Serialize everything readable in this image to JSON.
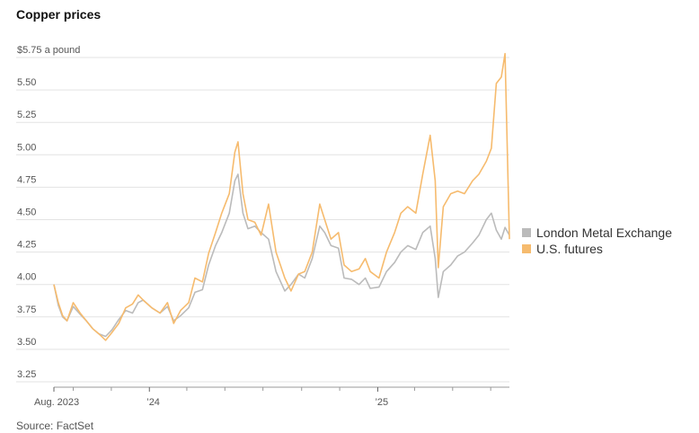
{
  "title": "Copper prices",
  "source": "Source: FactSet",
  "chart_data": {
    "type": "line",
    "unit_label": "a pound",
    "y_ticks": [
      {
        "value": 5.75,
        "label": "$5.75 a pound"
      },
      {
        "value": 5.5,
        "label": "5.50"
      },
      {
        "value": 5.25,
        "label": "5.25"
      },
      {
        "value": 5.0,
        "label": "5.00"
      },
      {
        "value": 4.75,
        "label": "4.75"
      },
      {
        "value": 4.5,
        "label": "4.50"
      },
      {
        "value": 4.25,
        "label": "4.25"
      },
      {
        "value": 4.0,
        "label": "4.00"
      },
      {
        "value": 3.75,
        "label": "3.75"
      },
      {
        "value": 3.5,
        "label": "3.50"
      },
      {
        "value": 3.25,
        "label": "3.25"
      }
    ],
    "ylim": [
      3.25,
      5.75
    ],
    "x_start": "2023-08-01",
    "x_end": "2025-07-31",
    "x_tick_labels": [
      {
        "date": "2023-08-01",
        "label": "Aug. 2023"
      },
      {
        "date": "2024-01-01",
        "label": "’24"
      },
      {
        "date": "2025-01-01",
        "label": "’25"
      }
    ],
    "grid": "horizontal",
    "legend_position": "right",
    "series": [
      {
        "name": "London Metal Exchange",
        "color": "#bbbbbb",
        "points": [
          [
            "2023-08-01",
            4.0
          ],
          [
            "2023-08-08",
            3.84
          ],
          [
            "2023-08-15",
            3.75
          ],
          [
            "2023-08-22",
            3.72
          ],
          [
            "2023-09-01",
            3.83
          ],
          [
            "2023-09-12",
            3.77
          ],
          [
            "2023-09-22",
            3.72
          ],
          [
            "2023-10-02",
            3.66
          ],
          [
            "2023-10-12",
            3.62
          ],
          [
            "2023-10-23",
            3.6
          ],
          [
            "2023-11-02",
            3.65
          ],
          [
            "2023-11-13",
            3.73
          ],
          [
            "2023-11-24",
            3.8
          ],
          [
            "2023-12-05",
            3.78
          ],
          [
            "2023-12-14",
            3.86
          ],
          [
            "2023-12-22",
            3.88
          ],
          [
            "2024-01-05",
            3.82
          ],
          [
            "2024-01-18",
            3.78
          ],
          [
            "2024-01-30",
            3.83
          ],
          [
            "2024-02-09",
            3.72
          ],
          [
            "2024-02-20",
            3.76
          ],
          [
            "2024-03-04",
            3.82
          ],
          [
            "2024-03-14",
            3.94
          ],
          [
            "2024-03-26",
            3.96
          ],
          [
            "2024-04-05",
            4.15
          ],
          [
            "2024-04-16",
            4.3
          ],
          [
            "2024-04-26",
            4.4
          ],
          [
            "2024-05-08",
            4.55
          ],
          [
            "2024-05-17",
            4.8
          ],
          [
            "2024-05-22",
            4.85
          ],
          [
            "2024-05-30",
            4.55
          ],
          [
            "2024-06-07",
            4.43
          ],
          [
            "2024-06-18",
            4.45
          ],
          [
            "2024-06-28",
            4.4
          ],
          [
            "2024-07-10",
            4.35
          ],
          [
            "2024-07-22",
            4.1
          ],
          [
            "2024-08-05",
            3.95
          ],
          [
            "2024-08-15",
            4.0
          ],
          [
            "2024-08-27",
            4.08
          ],
          [
            "2024-09-06",
            4.05
          ],
          [
            "2024-09-18",
            4.2
          ],
          [
            "2024-09-30",
            4.45
          ],
          [
            "2024-10-08",
            4.4
          ],
          [
            "2024-10-18",
            4.3
          ],
          [
            "2024-10-30",
            4.28
          ],
          [
            "2024-11-08",
            4.05
          ],
          [
            "2024-11-20",
            4.04
          ],
          [
            "2024-12-02",
            4.0
          ],
          [
            "2024-12-12",
            4.05
          ],
          [
            "2024-12-20",
            3.97
          ],
          [
            "2025-01-03",
            3.98
          ],
          [
            "2025-01-15",
            4.1
          ],
          [
            "2025-01-28",
            4.17
          ],
          [
            "2025-02-07",
            4.25
          ],
          [
            "2025-02-18",
            4.3
          ],
          [
            "2025-03-03",
            4.27
          ],
          [
            "2025-03-14",
            4.4
          ],
          [
            "2025-03-26",
            4.45
          ],
          [
            "2025-04-03",
            4.2
          ],
          [
            "2025-04-08",
            3.9
          ],
          [
            "2025-04-16",
            4.1
          ],
          [
            "2025-04-28",
            4.15
          ],
          [
            "2025-05-09",
            4.22
          ],
          [
            "2025-05-20",
            4.25
          ],
          [
            "2025-06-02",
            4.32
          ],
          [
            "2025-06-12",
            4.38
          ],
          [
            "2025-06-24",
            4.5
          ],
          [
            "2025-07-02",
            4.55
          ],
          [
            "2025-07-10",
            4.42
          ],
          [
            "2025-07-18",
            4.35
          ],
          [
            "2025-07-24",
            4.44
          ],
          [
            "2025-07-31",
            4.38
          ]
        ]
      },
      {
        "name": "U.S. futures",
        "color": "#f6bb6e",
        "points": [
          [
            "2023-08-01",
            4.0
          ],
          [
            "2023-08-08",
            3.86
          ],
          [
            "2023-08-15",
            3.76
          ],
          [
            "2023-08-22",
            3.72
          ],
          [
            "2023-09-01",
            3.86
          ],
          [
            "2023-09-12",
            3.78
          ],
          [
            "2023-09-22",
            3.72
          ],
          [
            "2023-10-02",
            3.66
          ],
          [
            "2023-10-12",
            3.62
          ],
          [
            "2023-10-23",
            3.57
          ],
          [
            "2023-11-02",
            3.63
          ],
          [
            "2023-11-13",
            3.7
          ],
          [
            "2023-11-24",
            3.82
          ],
          [
            "2023-12-05",
            3.85
          ],
          [
            "2023-12-14",
            3.92
          ],
          [
            "2023-12-22",
            3.88
          ],
          [
            "2024-01-05",
            3.82
          ],
          [
            "2024-01-18",
            3.78
          ],
          [
            "2024-01-30",
            3.86
          ],
          [
            "2024-02-09",
            3.7
          ],
          [
            "2024-02-20",
            3.8
          ],
          [
            "2024-03-04",
            3.86
          ],
          [
            "2024-03-14",
            4.05
          ],
          [
            "2024-03-26",
            4.02
          ],
          [
            "2024-04-05",
            4.24
          ],
          [
            "2024-04-16",
            4.4
          ],
          [
            "2024-04-26",
            4.55
          ],
          [
            "2024-05-08",
            4.7
          ],
          [
            "2024-05-17",
            5.02
          ],
          [
            "2024-05-22",
            5.1
          ],
          [
            "2024-05-30",
            4.7
          ],
          [
            "2024-06-07",
            4.5
          ],
          [
            "2024-06-18",
            4.48
          ],
          [
            "2024-06-28",
            4.38
          ],
          [
            "2024-07-10",
            4.62
          ],
          [
            "2024-07-22",
            4.25
          ],
          [
            "2024-08-05",
            4.05
          ],
          [
            "2024-08-15",
            3.95
          ],
          [
            "2024-08-27",
            4.08
          ],
          [
            "2024-09-06",
            4.1
          ],
          [
            "2024-09-18",
            4.25
          ],
          [
            "2024-09-30",
            4.62
          ],
          [
            "2024-10-08",
            4.5
          ],
          [
            "2024-10-18",
            4.35
          ],
          [
            "2024-10-30",
            4.4
          ],
          [
            "2024-11-08",
            4.15
          ],
          [
            "2024-11-20",
            4.1
          ],
          [
            "2024-12-02",
            4.12
          ],
          [
            "2024-12-12",
            4.2
          ],
          [
            "2024-12-20",
            4.1
          ],
          [
            "2025-01-03",
            4.05
          ],
          [
            "2025-01-15",
            4.25
          ],
          [
            "2025-01-28",
            4.4
          ],
          [
            "2025-02-07",
            4.55
          ],
          [
            "2025-02-18",
            4.6
          ],
          [
            "2025-03-03",
            4.55
          ],
          [
            "2025-03-14",
            4.85
          ],
          [
            "2025-03-26",
            5.15
          ],
          [
            "2025-04-03",
            4.8
          ],
          [
            "2025-04-08",
            4.13
          ],
          [
            "2025-04-16",
            4.6
          ],
          [
            "2025-04-28",
            4.7
          ],
          [
            "2025-05-09",
            4.72
          ],
          [
            "2025-05-20",
            4.7
          ],
          [
            "2025-06-02",
            4.8
          ],
          [
            "2025-06-12",
            4.85
          ],
          [
            "2025-06-24",
            4.95
          ],
          [
            "2025-07-02",
            5.05
          ],
          [
            "2025-07-10",
            5.55
          ],
          [
            "2025-07-18",
            5.6
          ],
          [
            "2025-07-24",
            5.78
          ],
          [
            "2025-07-31",
            4.35
          ]
        ]
      }
    ]
  }
}
